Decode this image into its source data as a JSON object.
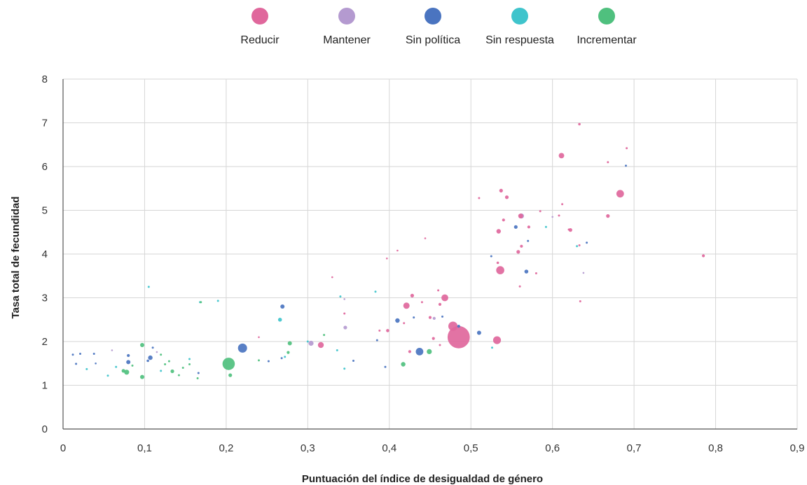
{
  "chart_data": {
    "type": "scatter",
    "title": "",
    "xlabel": "Puntuación del índice de desigualdad de género",
    "ylabel": "Tasa total de fecundidad",
    "xlim": [
      0,
      0.9
    ],
    "ylim": [
      0,
      8
    ],
    "x_ticks": [
      "0",
      "0,1",
      "0,2",
      "0,3",
      "0,4",
      "0,5",
      "0,6",
      "0,7",
      "0,8",
      "0,9"
    ],
    "y_ticks": [
      "0",
      "1",
      "2",
      "3",
      "4",
      "5",
      "6",
      "7",
      "8"
    ],
    "grid": true,
    "legend_position": "top-center",
    "size_encoding": "bubble area",
    "series": [
      {
        "name": "Reducir",
        "color": "#e0679c",
        "points": [
          [
            0.485,
            2.1,
            230
          ],
          [
            0.478,
            2.35,
            40
          ],
          [
            0.532,
            2.03,
            28
          ],
          [
            0.536,
            3.63,
            30
          ],
          [
            0.683,
            5.38,
            26
          ],
          [
            0.611,
            6.25,
            14
          ],
          [
            0.468,
            3.0,
            22
          ],
          [
            0.421,
            2.82,
            18
          ],
          [
            0.316,
            1.92,
            16
          ],
          [
            0.534,
            4.52,
            9
          ],
          [
            0.561,
            4.87,
            11
          ],
          [
            0.537,
            5.45,
            6
          ],
          [
            0.544,
            5.3,
            6
          ],
          [
            0.633,
            6.97,
            3
          ],
          [
            0.691,
            6.42,
            2
          ],
          [
            0.668,
            6.1,
            2
          ],
          [
            0.668,
            4.87,
            6
          ],
          [
            0.622,
            4.55,
            6
          ],
          [
            0.558,
            4.05,
            6
          ],
          [
            0.562,
            4.18,
            4
          ],
          [
            0.571,
            4.62,
            4
          ],
          [
            0.54,
            4.78,
            4
          ],
          [
            0.533,
            3.8,
            3
          ],
          [
            0.785,
            3.96,
            4
          ],
          [
            0.612,
            5.14,
            2
          ],
          [
            0.608,
            4.88,
            2
          ],
          [
            0.585,
            4.98,
            2
          ],
          [
            0.51,
            5.28,
            2
          ],
          [
            0.444,
            4.36,
            1.5
          ],
          [
            0.41,
            4.08,
            1.5
          ],
          [
            0.397,
            3.9,
            1.5
          ],
          [
            0.428,
            3.05,
            6
          ],
          [
            0.46,
            3.17,
            2
          ],
          [
            0.462,
            2.85,
            4
          ],
          [
            0.45,
            2.55,
            4
          ],
          [
            0.398,
            2.25,
            5
          ],
          [
            0.388,
            2.25,
            2
          ],
          [
            0.44,
            2.9,
            2
          ],
          [
            0.345,
            2.64,
            2
          ],
          [
            0.33,
            3.47,
            1.5
          ],
          [
            0.425,
            1.77,
            4
          ],
          [
            0.454,
            2.07,
            4
          ],
          [
            0.418,
            2.42,
            2
          ],
          [
            0.633,
            4.2,
            2
          ],
          [
            0.634,
            2.92,
            2
          ],
          [
            0.62,
            4.56,
            2
          ],
          [
            0.56,
            3.26,
            2
          ],
          [
            0.58,
            3.56,
            2
          ],
          [
            0.462,
            1.92,
            2
          ],
          [
            0.24,
            2.1,
            1.5
          ]
        ]
      },
      {
        "name": "Mantener",
        "color": "#b49ad0",
        "points": [
          [
            0.562,
            4.87,
            12
          ],
          [
            0.304,
            1.96,
            12
          ],
          [
            0.346,
            2.32,
            6
          ],
          [
            0.455,
            2.53,
            4
          ],
          [
            0.6,
            4.85,
            1.5
          ],
          [
            0.638,
            3.57,
            1.5
          ],
          [
            0.06,
            1.8,
            1.5
          ],
          [
            0.115,
            1.76,
            1.5
          ],
          [
            0.345,
            2.97,
            1.5
          ]
        ]
      },
      {
        "name": "Sin política",
        "color": "#4a74c0",
        "points": [
          [
            0.22,
            1.85,
            38
          ],
          [
            0.437,
            1.77,
            26
          ],
          [
            0.269,
            2.8,
            8
          ],
          [
            0.41,
            2.48,
            9
          ],
          [
            0.51,
            2.2,
            8
          ],
          [
            0.568,
            3.6,
            7
          ],
          [
            0.555,
            4.62,
            6
          ],
          [
            0.107,
            1.63,
            9
          ],
          [
            0.08,
            1.53,
            8
          ],
          [
            0.08,
            1.68,
            4
          ],
          [
            0.485,
            2.35,
            4
          ],
          [
            0.385,
            2.03,
            2
          ],
          [
            0.69,
            6.02,
            2
          ],
          [
            0.642,
            4.26,
            2
          ],
          [
            0.465,
            2.57,
            2
          ],
          [
            0.525,
            3.95,
            2
          ],
          [
            0.57,
            4.3,
            2
          ],
          [
            0.012,
            1.7,
            2
          ],
          [
            0.021,
            1.72,
            2
          ],
          [
            0.016,
            1.49,
            2
          ],
          [
            0.038,
            1.72,
            2
          ],
          [
            0.11,
            1.86,
            2
          ],
          [
            0.104,
            1.56,
            3
          ],
          [
            0.166,
            1.28,
            2
          ],
          [
            0.252,
            1.55,
            2
          ],
          [
            0.268,
            1.62,
            2
          ],
          [
            0.356,
            1.56,
            2
          ],
          [
            0.395,
            1.42,
            2
          ],
          [
            0.43,
            2.55,
            2
          ],
          [
            0.04,
            1.5,
            1.5
          ]
        ]
      },
      {
        "name": "Sin respuesta",
        "color": "#3fc4cc",
        "points": [
          [
            0.266,
            2.5,
            7
          ],
          [
            0.105,
            3.25,
            2
          ],
          [
            0.168,
            2.9,
            2
          ],
          [
            0.19,
            2.93,
            2
          ],
          [
            0.383,
            3.14,
            2
          ],
          [
            0.34,
            3.03,
            2
          ],
          [
            0.63,
            4.18,
            2
          ],
          [
            0.592,
            4.62,
            2
          ],
          [
            0.526,
            1.86,
            2
          ],
          [
            0.065,
            1.42,
            2
          ],
          [
            0.055,
            1.22,
            2
          ],
          [
            0.029,
            1.37,
            2
          ],
          [
            0.12,
            1.33,
            2
          ],
          [
            0.155,
            1.6,
            2
          ],
          [
            0.3,
            2.0,
            2
          ],
          [
            0.336,
            1.8,
            2
          ],
          [
            0.272,
            1.65,
            2
          ],
          [
            0.345,
            1.38,
            2
          ]
        ]
      },
      {
        "name": "Incrementar",
        "color": "#4fc07e",
        "points": [
          [
            0.203,
            1.49,
            70
          ],
          [
            0.078,
            1.3,
            12
          ],
          [
            0.097,
            1.92,
            8
          ],
          [
            0.097,
            1.19,
            8
          ],
          [
            0.074,
            1.33,
            6
          ],
          [
            0.134,
            1.32,
            6
          ],
          [
            0.205,
            1.23,
            6
          ],
          [
            0.278,
            1.96,
            8
          ],
          [
            0.449,
            1.77,
            12
          ],
          [
            0.417,
            1.48,
            9
          ],
          [
            0.169,
            2.9,
            2
          ],
          [
            0.276,
            1.75,
            4
          ],
          [
            0.32,
            2.15,
            2
          ],
          [
            0.24,
            1.57,
            2
          ],
          [
            0.155,
            1.48,
            2
          ],
          [
            0.147,
            1.4,
            2
          ],
          [
            0.13,
            1.55,
            2
          ],
          [
            0.12,
            1.7,
            2
          ],
          [
            0.165,
            1.16,
            2
          ],
          [
            0.085,
            1.45,
            2
          ],
          [
            0.125,
            1.48,
            2
          ],
          [
            0.142,
            1.23,
            2
          ]
        ]
      }
    ]
  }
}
